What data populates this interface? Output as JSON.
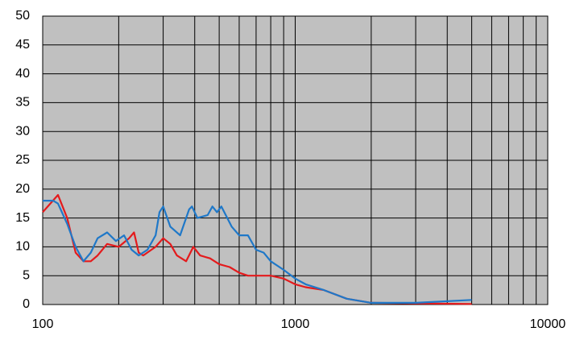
{
  "chart_data": {
    "type": "line",
    "xscale": "log",
    "grid": true,
    "background": "#c0c0c0",
    "xlim": [
      100,
      10000
    ],
    "xticks": [
      100,
      1000,
      10000
    ],
    "xgrid": [
      200,
      300,
      400,
      500,
      600,
      700,
      800,
      900,
      2000,
      3000,
      4000,
      5000,
      6000,
      7000,
      8000,
      9000
    ],
    "ylim": [
      0,
      50
    ],
    "yticks": [
      0,
      5,
      10,
      15,
      20,
      25,
      30,
      35,
      40,
      45,
      50
    ],
    "series": [
      {
        "color": "#e41a1c",
        "x": [
          100,
          115,
          125,
          135,
          145,
          155,
          165,
          180,
          200,
          220,
          230,
          240,
          250,
          280,
          300,
          320,
          340,
          370,
          395,
          420,
          460,
          500,
          550,
          600,
          650,
          700,
          800,
          900,
          1000,
          1100,
          1300,
          1600,
          2000,
          3000,
          5000
        ],
        "values": [
          16,
          19,
          15,
          9,
          7.5,
          7.5,
          8.5,
          10.5,
          10,
          11.5,
          12.5,
          9,
          8.5,
          10,
          11.5,
          10.5,
          8.5,
          7.5,
          10,
          8.5,
          8,
          7,
          6.5,
          5.5,
          5,
          5,
          5,
          4.5,
          3.5,
          3,
          2.5,
          1,
          0.3,
          0.2,
          0.1
        ]
      },
      {
        "color": "#1f78c8",
        "x": [
          100,
          110,
          115,
          125,
          135,
          145,
          155,
          165,
          180,
          195,
          210,
          225,
          240,
          260,
          280,
          290,
          300,
          320,
          350,
          380,
          390,
          410,
          450,
          470,
          490,
          510,
          560,
          600,
          650,
          700,
          750,
          800,
          900,
          1000,
          1100,
          1300,
          1600,
          2000,
          3000,
          5000
        ],
        "values": [
          18,
          18,
          17.5,
          14,
          10,
          7.5,
          9,
          11.5,
          12.5,
          11,
          12,
          9.5,
          8.5,
          9.5,
          12,
          16,
          17,
          13.5,
          12,
          16.5,
          17,
          15,
          15.5,
          17,
          16,
          17,
          13.5,
          12,
          12,
          9.5,
          9,
          7.5,
          6,
          4.5,
          3.5,
          2.5,
          1,
          0.3,
          0.3,
          0.8
        ]
      }
    ]
  }
}
